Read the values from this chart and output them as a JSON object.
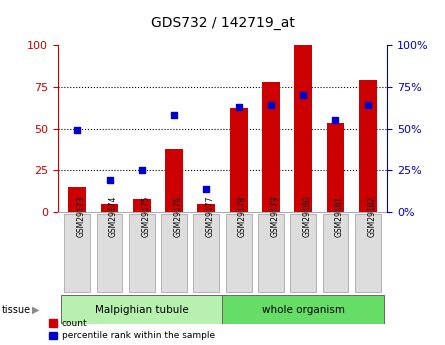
{
  "title": "GDS732 / 142719_at",
  "samples": [
    "GSM29173",
    "GSM29174",
    "GSM29175",
    "GSM29176",
    "GSM29177",
    "GSM29178",
    "GSM29179",
    "GSM29180",
    "GSM29181",
    "GSM29182"
  ],
  "count": [
    15,
    5,
    8,
    38,
    5,
    62,
    78,
    100,
    53,
    79
  ],
  "percentile": [
    49,
    19,
    25,
    58,
    14,
    63,
    64,
    70,
    55,
    64
  ],
  "tissues": [
    {
      "label": "Malpighian tubule",
      "start": 0,
      "end": 5,
      "color": "#b8f0b0"
    },
    {
      "label": "whole organism",
      "start": 5,
      "end": 10,
      "color": "#66dd66"
    }
  ],
  "bar_color": "#cc0000",
  "dot_color": "#0000cc",
  "left_axis_color": "#cc0000",
  "right_axis_color": "#0000cc",
  "yticks": [
    0,
    25,
    50,
    75,
    100
  ],
  "ylim": [
    0,
    100
  ],
  "bg_color_plot": "#ffffff"
}
